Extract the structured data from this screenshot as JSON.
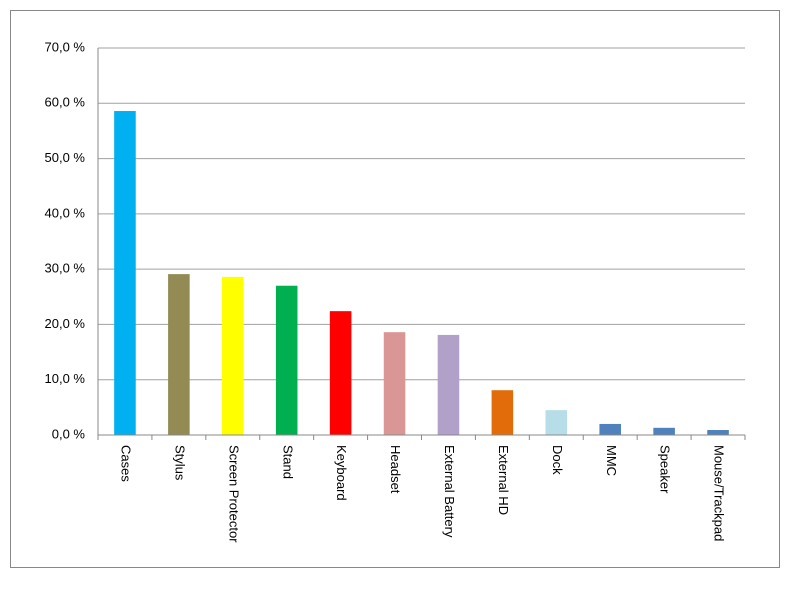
{
  "chart_data": {
    "type": "bar",
    "categories": [
      "Cases",
      "Stylus",
      "Screen Protector",
      "Stand",
      "Keyboard",
      "Headset",
      "External Battery",
      "External HD",
      "Dock",
      "MMC",
      "Speaker",
      "Mouse/Trackpad"
    ],
    "values": [
      58.6,
      29.1,
      28.6,
      27.0,
      22.4,
      18.6,
      18.1,
      8.1,
      4.5,
      2.0,
      1.3,
      0.9
    ],
    "colors": [
      "#00b0f0",
      "#948a54",
      "#ffff00",
      "#00b050",
      "#ff0000",
      "#da9694",
      "#b1a0c7",
      "#e26b0a",
      "#b7dee8",
      "#4f81bd",
      "#4f81bd",
      "#4f81bd"
    ],
    "ylim": [
      0,
      70
    ],
    "yticks": [
      {
        "value": 0,
        "label": "0,0 %"
      },
      {
        "value": 10,
        "label": "10,0 %"
      },
      {
        "value": 20,
        "label": "20,0 %"
      },
      {
        "value": 30,
        "label": "30,0 %"
      },
      {
        "value": 40,
        "label": "40,0 %"
      },
      {
        "value": 50,
        "label": "50,0 %"
      },
      {
        "value": 60,
        "label": "60,0 %"
      },
      {
        "value": 70,
        "label": "70,0 %"
      }
    ],
    "grid": true
  }
}
